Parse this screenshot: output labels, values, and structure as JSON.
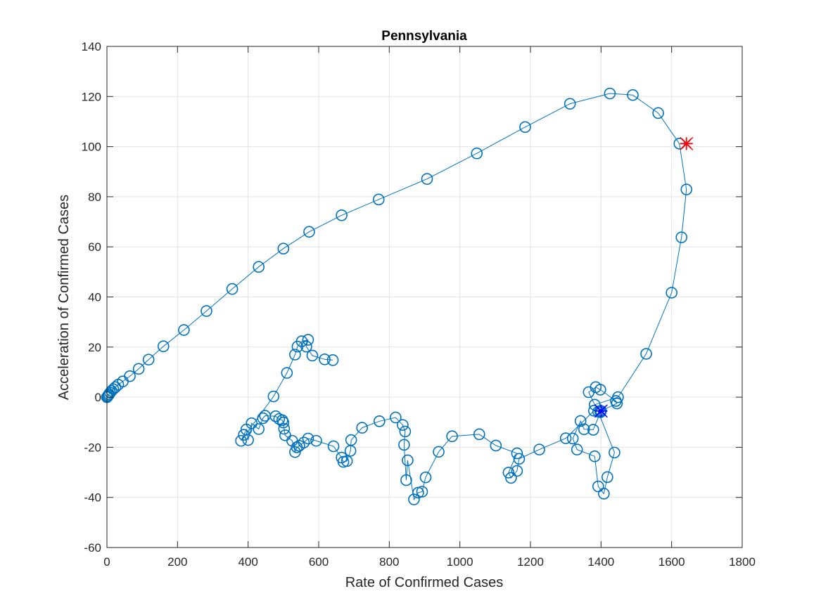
{
  "chart_data": {
    "type": "line",
    "title": "Pennsylvania",
    "xlabel": "Rate of Confirmed Cases",
    "ylabel": "Acceleration of Confirmed Cases",
    "xlim": [
      0,
      1800
    ],
    "ylim": [
      -60,
      140
    ],
    "xticks": [
      "0",
      "200",
      "400",
      "600",
      "800",
      "1000",
      "1200",
      "1400",
      "1600",
      "1800"
    ],
    "yticks": [
      "-60",
      "-40",
      "-20",
      "0",
      "20",
      "40",
      "60",
      "80",
      "100",
      "120",
      "140"
    ],
    "grid": true,
    "colors": {
      "series": "#0072BD",
      "start_marker": "#FF0000",
      "end_marker": "#0000FF",
      "axis": "#262626",
      "grid": "#E3E3E3"
    },
    "series": [
      {
        "marker": "circle",
        "x": [
          0,
          2,
          4,
          6,
          9,
          13,
          18,
          24,
          32,
          45,
          65,
          90,
          118,
          160,
          218,
          282,
          355,
          430,
          500,
          573,
          665,
          770,
          907,
          1048,
          1185,
          1312,
          1425,
          1490,
          1562,
          1622,
          1642,
          1628,
          1600,
          1528,
          1448,
          1382,
          1365,
          1385,
          1398,
          1442,
          1445,
          1400,
          1378,
          1352,
          1342,
          1320,
          1332,
          1382,
          1392,
          1408,
          1418,
          1438,
          1392,
          1398,
          1398,
          1380,
          1300,
          1225,
          1168,
          1162,
          1145,
          1138,
          1162,
          1102,
          1055,
          978,
          940,
          903,
          893,
          882,
          870,
          852,
          848,
          842,
          845,
          838,
          818,
          772,
          723,
          692,
          690,
          680,
          670,
          665,
          642,
          593,
          570,
          558,
          545,
          538,
          533,
          525,
          505,
          502,
          500,
          497,
          488,
          478,
          448,
          442,
          430,
          410,
          400,
          395,
          388,
          380,
          472,
          510,
          533,
          540,
          552,
          570,
          565,
          582,
          617,
          640
        ],
        "y": [
          0,
          0.3,
          0.7,
          1.2,
          1.8,
          2.5,
          3.2,
          4.0,
          5.0,
          6.3,
          8.4,
          11.3,
          15.0,
          20.3,
          26.8,
          34.4,
          43.2,
          52.0,
          59.3,
          66.0,
          72.6,
          78.9,
          87.1,
          97.3,
          107.8,
          117.1,
          121.2,
          120.6,
          113.4,
          101.2,
          82.9,
          63.8,
          41.7,
          17.3,
          0,
          -3,
          2,
          4,
          3,
          -1.5,
          -2.5,
          -5.5,
          -13,
          -12.8,
          -9.5,
          -16.5,
          -20.9,
          -23.6,
          -35.6,
          -38.5,
          -31.9,
          -22.1,
          -5.8,
          -6,
          -5.5,
          -5.4,
          -16.4,
          -20.9,
          -24.6,
          -29.4,
          -32.2,
          -30.1,
          -22.4,
          -19.3,
          -14.8,
          -15.6,
          -21.8,
          -32.0,
          -37.7,
          -38.1,
          -40.8,
          -25.2,
          -33.1,
          -19.0,
          -13.7,
          -11.1,
          -8.1,
          -9.6,
          -12.2,
          -17.1,
          -21.4,
          -25.5,
          -25.8,
          -24.1,
          -19.6,
          -17.4,
          -16.5,
          -18.1,
          -19.4,
          -20.0,
          -21.9,
          -17.4,
          -15.2,
          -12.6,
          -10.1,
          -9.2,
          -8.7,
          -7.6,
          -7.4,
          -8.4,
          -12.7,
          -10.4,
          -17.1,
          -12.9,
          -15.0,
          -17.4,
          0.3,
          9.7,
          17.0,
          20.2,
          22.3,
          22.9,
          20.2,
          16.6,
          15.1,
          14.8
        ]
      },
      {
        "name": "start",
        "marker": "star-x",
        "x": [
          1642
        ],
        "y": [
          101.2
        ]
      },
      {
        "name": "end",
        "marker": "star-x",
        "x": [
          1400
        ],
        "y": [
          -5.5
        ]
      }
    ]
  }
}
